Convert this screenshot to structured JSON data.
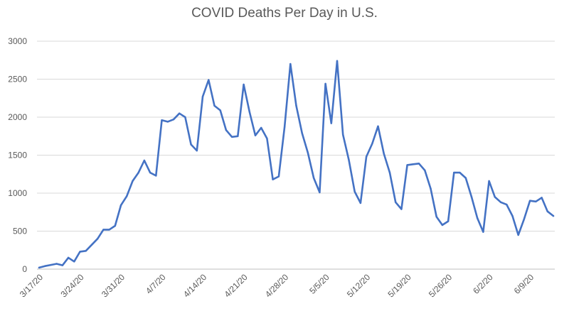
{
  "chart_data": {
    "type": "line",
    "title": "COVID Deaths Per Day in U.S.",
    "xlabel": "",
    "ylabel": "",
    "ylim": [
      0,
      3000
    ],
    "yticks": [
      0,
      500,
      1000,
      1500,
      2000,
      2500,
      3000
    ],
    "grid": true,
    "line_color": "#4472C4",
    "x_tick_labels": [
      "3/17/20",
      "3/24/20",
      "3/31/20",
      "4/7/20",
      "4/14/20",
      "4/21/20",
      "4/28/20",
      "5/5/20",
      "5/12/20",
      "5/19/20",
      "5/26/20",
      "6/2/20",
      "6/9/20"
    ],
    "series": [
      {
        "name": "Deaths per day",
        "values": [
          20,
          40,
          55,
          70,
          50,
          150,
          100,
          230,
          240,
          320,
          400,
          520,
          520,
          570,
          840,
          960,
          1160,
          1270,
          1430,
          1270,
          1230,
          1960,
          1940,
          1970,
          2050,
          2000,
          1640,
          1560,
          2270,
          2490,
          2150,
          2090,
          1830,
          1740,
          1750,
          2430,
          2070,
          1760,
          1860,
          1720,
          1180,
          1220,
          1870,
          2700,
          2150,
          1790,
          1530,
          1200,
          1010,
          2440,
          1920,
          2740,
          1770,
          1440,
          1020,
          870,
          1480,
          1650,
          1880,
          1520,
          1270,
          880,
          790,
          1370,
          1380,
          1390,
          1300,
          1060,
          690,
          580,
          630,
          1270,
          1270,
          1200,
          950,
          670,
          490,
          1160,
          950,
          880,
          850,
          700,
          450,
          660,
          900,
          890,
          940,
          760,
          700
        ]
      }
    ]
  }
}
